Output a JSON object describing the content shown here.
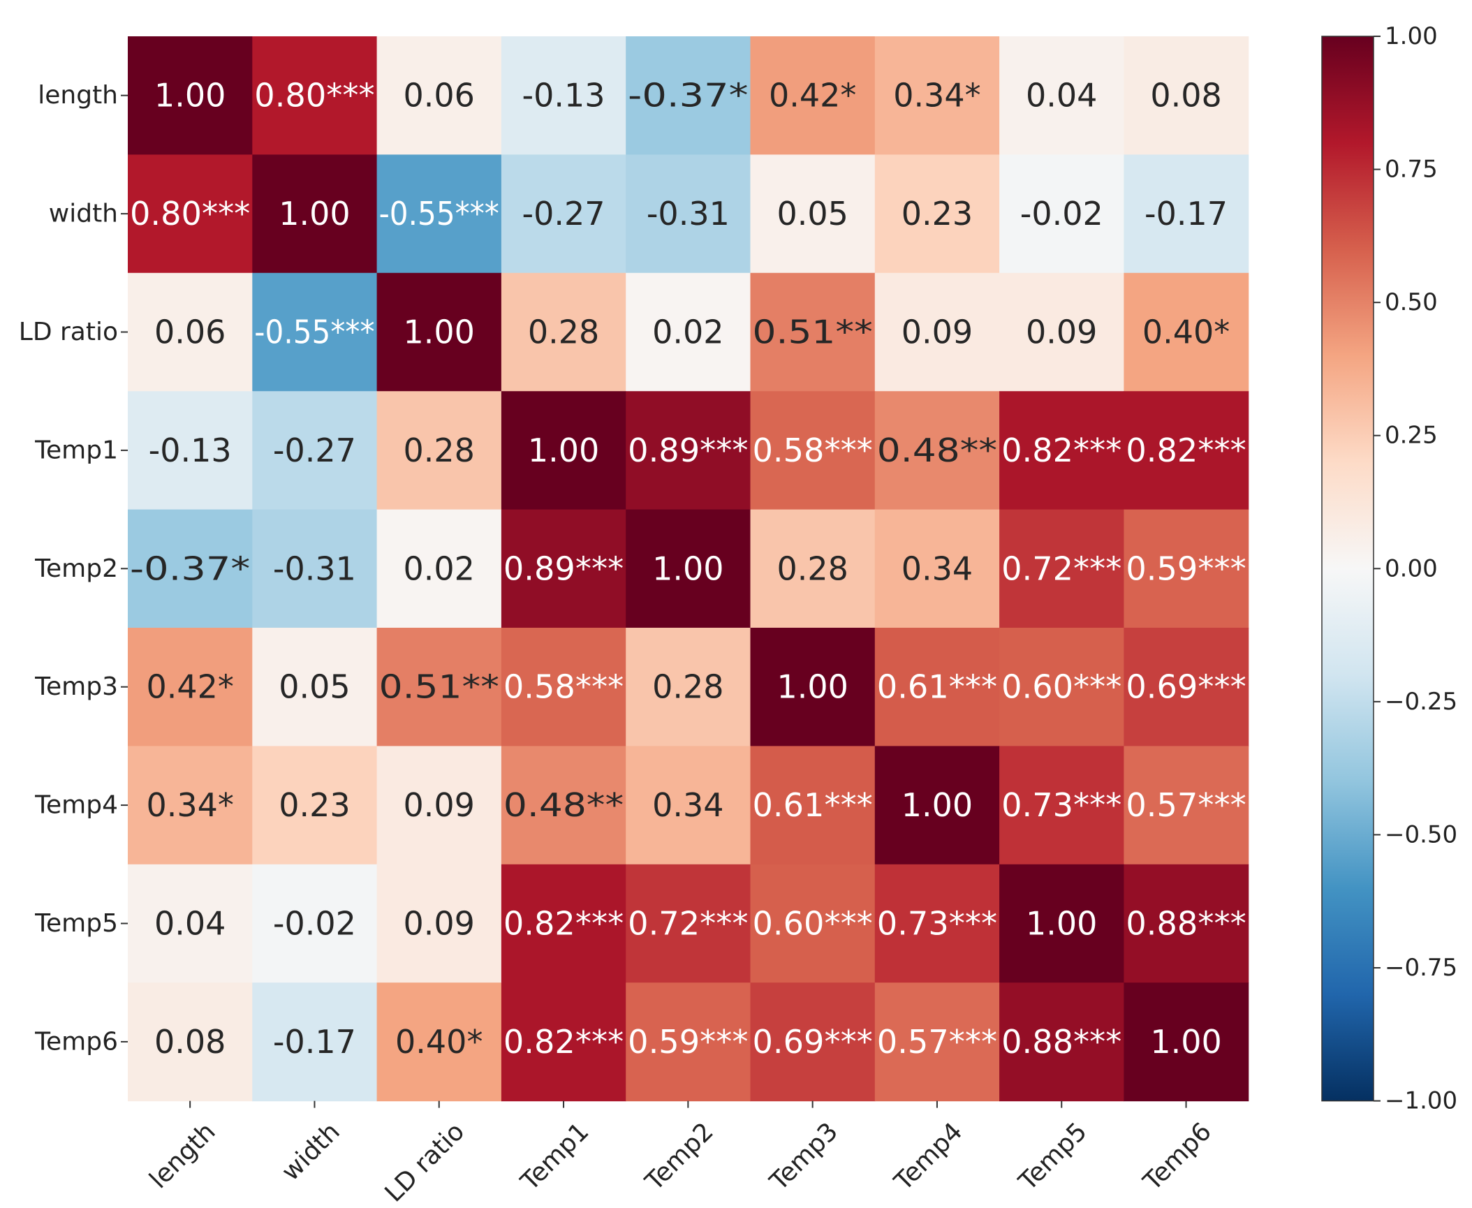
{
  "chart_data": {
    "type": "heatmap",
    "title": "",
    "xlabel": "",
    "ylabel": "",
    "row_labels": [
      "length",
      "width",
      "LD ratio",
      "Temp1",
      "Temp2",
      "Temp3",
      "Temp4",
      "Temp5",
      "Temp6"
    ],
    "col_labels": [
      "length",
      "width",
      "LD ratio",
      "Temp1",
      "Temp2",
      "Temp3",
      "Temp4",
      "Temp5",
      "Temp6"
    ],
    "values": [
      [
        1.0,
        0.8,
        0.06,
        -0.13,
        -0.37,
        0.42,
        0.34,
        0.04,
        0.08
      ],
      [
        0.8,
        1.0,
        -0.55,
        -0.27,
        -0.31,
        0.05,
        0.23,
        -0.02,
        -0.17
      ],
      [
        0.06,
        -0.55,
        1.0,
        0.28,
        0.02,
        0.51,
        0.09,
        0.09,
        0.4
      ],
      [
        -0.13,
        -0.27,
        0.28,
        1.0,
        0.89,
        0.58,
        0.48,
        0.82,
        0.82
      ],
      [
        -0.37,
        -0.31,
        0.02,
        0.89,
        1.0,
        0.28,
        0.34,
        0.72,
        0.59
      ],
      [
        0.42,
        0.05,
        0.51,
        0.58,
        0.28,
        1.0,
        0.61,
        0.6,
        0.69
      ],
      [
        0.34,
        0.23,
        0.09,
        0.48,
        0.34,
        0.61,
        1.0,
        0.73,
        0.57
      ],
      [
        0.04,
        -0.02,
        0.09,
        0.82,
        0.72,
        0.6,
        0.73,
        1.0,
        0.88
      ],
      [
        0.08,
        -0.17,
        0.4,
        0.82,
        0.59,
        0.69,
        0.57,
        0.88,
        1.0
      ]
    ],
    "annotations": [
      [
        "1.00",
        "0.80***",
        "0.06",
        "-0.13",
        "-0.37*",
        "0.42*",
        "0.34*",
        "0.04",
        "0.08"
      ],
      [
        "0.80***",
        "1.00",
        "-0.55***",
        "-0.27",
        "-0.31",
        "0.05",
        "0.23",
        "-0.02",
        "-0.17"
      ],
      [
        "0.06",
        "-0.55***",
        "1.00",
        "0.28",
        "0.02",
        "0.51**",
        "0.09",
        "0.09",
        "0.40*"
      ],
      [
        "-0.13",
        "-0.27",
        "0.28",
        "1.00",
        "0.89***",
        "0.58***",
        "0.48**",
        "0.82***",
        "0.82***"
      ],
      [
        "-0.37*",
        "-0.31",
        "0.02",
        "0.89***",
        "1.00",
        "0.28",
        "0.34",
        "0.72***",
        "0.59***"
      ],
      [
        "0.42*",
        "0.05",
        "0.51**",
        "0.58***",
        "0.28",
        "1.00",
        "0.61***",
        "0.60***",
        "0.69***"
      ],
      [
        "0.34*",
        "0.23",
        "0.09",
        "0.48**",
        "0.34",
        "0.61***",
        "1.00",
        "0.73***",
        "0.57***"
      ],
      [
        "0.04",
        "-0.02",
        "0.09",
        "0.82***",
        "0.72***",
        "0.60***",
        "0.73***",
        "1.00",
        "0.88***"
      ],
      [
        "0.08",
        "-0.17",
        "0.40*",
        "0.82***",
        "0.59***",
        "0.69***",
        "0.57***",
        "0.88***",
        "1.00"
      ]
    ],
    "colormap": "RdBu_r",
    "vmin": -1.0,
    "vmax": 1.0,
    "colorbar_ticks": [
      1.0,
      0.75,
      0.5,
      0.25,
      0.0,
      -0.25,
      -0.5,
      -0.75,
      -1.0
    ],
    "colorbar_tick_labels": [
      "1.00",
      "0.75",
      "0.50",
      "0.25",
      "0.00",
      "−0.25",
      "−0.50",
      "−0.75",
      "−1.00"
    ],
    "colormap_stops": [
      "#053061",
      "#2166ac",
      "#4393c3",
      "#92c5de",
      "#d1e5f0",
      "#f7f7f7",
      "#fddbc7",
      "#f4a582",
      "#d6604d",
      "#b2182b",
      "#67001f"
    ],
    "grid": false
  }
}
